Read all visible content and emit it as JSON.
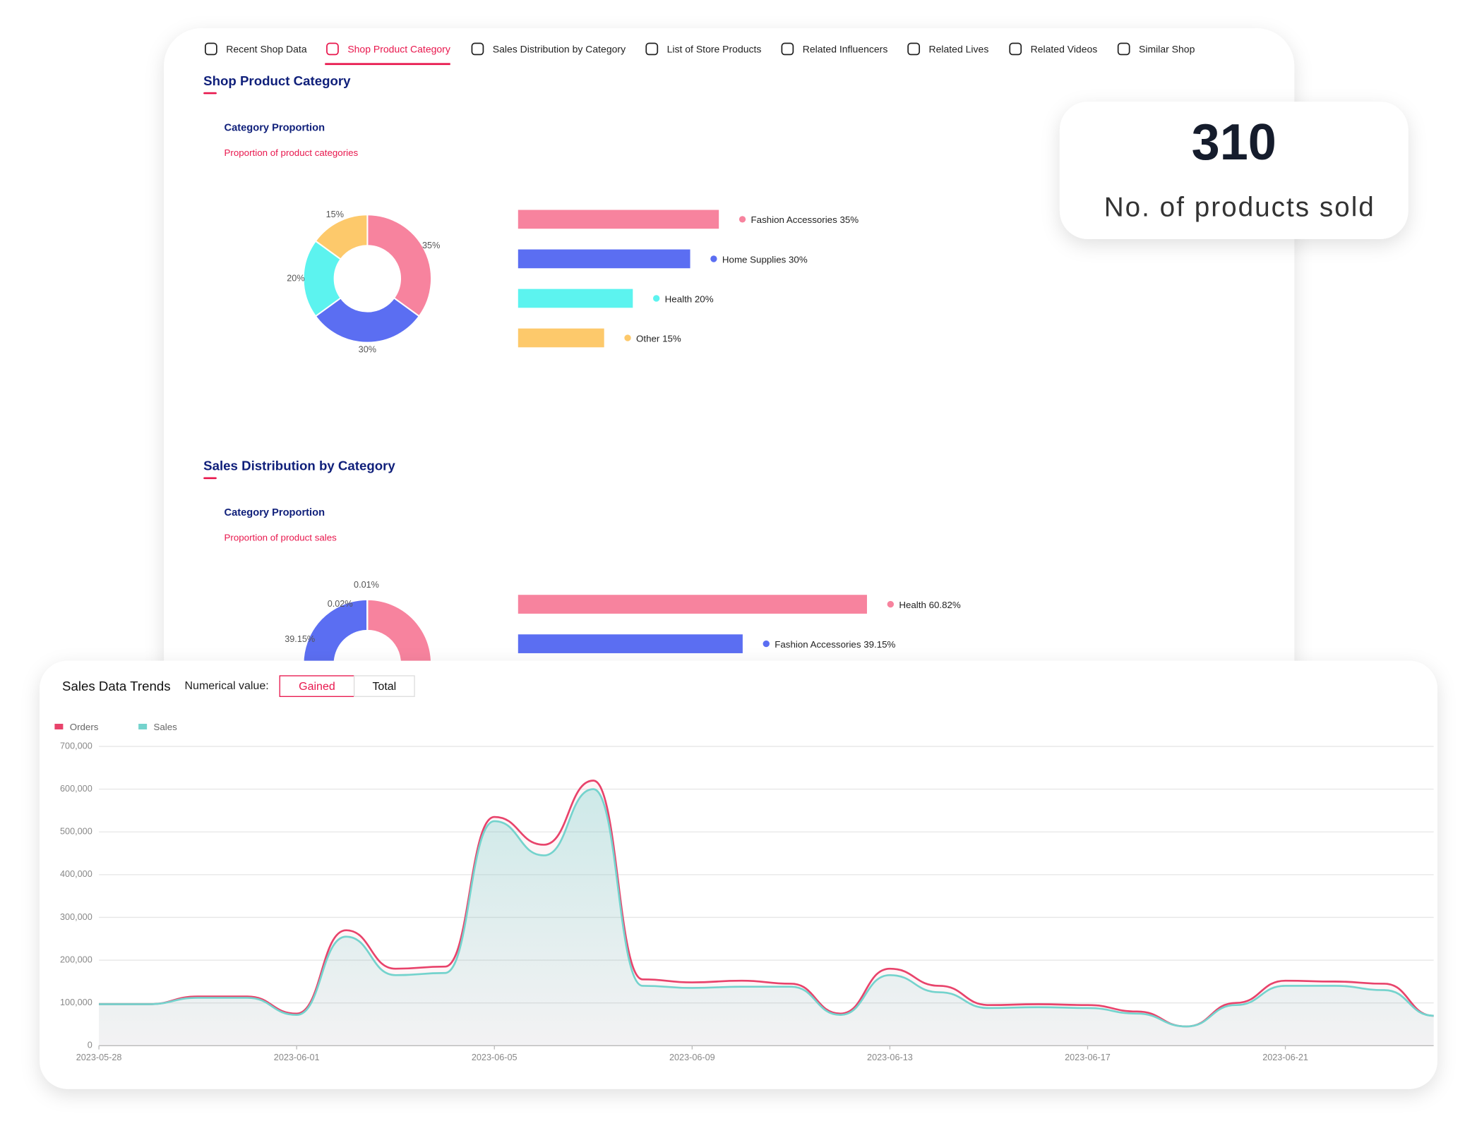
{
  "tabs": [
    "Recent Shop Data",
    "Shop Product Category",
    "Sales Distribution by Category",
    "List of Store Products",
    "Related Influencers",
    "Related Lives",
    "Related Videos",
    "Similar Shop"
  ],
  "active_tab": 1,
  "sections": [
    {
      "title": "Shop Product Category",
      "chart_data": {
        "type": "donut-bar",
        "title": "Category Proportion",
        "subtitle": "Proportion of product categories",
        "categories": [
          "Fashion Accessories",
          "Home Supplies",
          "Health",
          "Other"
        ],
        "values": [
          35,
          30,
          20,
          15
        ],
        "value_labels": [
          "35%",
          "30%",
          "20%",
          "15%"
        ],
        "colors": [
          "#f7839e",
          "#5b6ef2",
          "#5cf3ef",
          "#fdc96b"
        ]
      }
    },
    {
      "title": "Sales Distribution by Category",
      "chart_data": {
        "type": "donut-bar",
        "title": "Category Proportion",
        "subtitle": "Proportion of product sales",
        "categories": [
          "Health",
          "Fashion Accessories",
          null,
          null
        ],
        "values": [
          60.82,
          39.15,
          0.02,
          0.01
        ],
        "value_labels": [
          "60.82%",
          "39.15%",
          "0.02%",
          "0.01%"
        ],
        "colors": [
          "#f7839e",
          "#5b6ef2",
          "#5cf3ef",
          "#fdc96b"
        ]
      }
    }
  ],
  "stat": {
    "value": "310",
    "label": "No. of products sold"
  },
  "trend": {
    "title": "Sales Data Trends",
    "control_label": "Numerical value:",
    "buttons": [
      "Gained",
      "Total"
    ],
    "active_button": 0,
    "chart_data": {
      "type": "area",
      "x": [
        "2023-05-28",
        "2023-05-29",
        "2023-05-30",
        "2023-05-31",
        "2023-06-01",
        "2023-06-02",
        "2023-06-03",
        "2023-06-04",
        "2023-06-05",
        "2023-06-06",
        "2023-06-07",
        "2023-06-08",
        "2023-06-09",
        "2023-06-10",
        "2023-06-11",
        "2023-06-12",
        "2023-06-13",
        "2023-06-14",
        "2023-06-15",
        "2023-06-16",
        "2023-06-17",
        "2023-06-18",
        "2023-06-19",
        "2023-06-20",
        "2023-06-21",
        "2023-06-22",
        "2023-06-23",
        "2023-06-24"
      ],
      "xtick_every": 4,
      "series": [
        {
          "name": "Orders",
          "color": "#e8436b",
          "values": [
            97000,
            97000,
            115000,
            115000,
            75000,
            270000,
            180000,
            185000,
            535000,
            470000,
            620000,
            155000,
            148000,
            152000,
            145000,
            75000,
            180000,
            140000,
            95000,
            97000,
            95000,
            80000,
            45000,
            100000,
            152000,
            150000,
            145000,
            70000
          ]
        },
        {
          "name": "Sales",
          "color": "#74d3cd",
          "values": [
            97000,
            97000,
            112000,
            112000,
            72000,
            255000,
            165000,
            170000,
            525000,
            445000,
            600000,
            140000,
            135000,
            138000,
            138000,
            72000,
            165000,
            125000,
            88000,
            90000,
            88000,
            75000,
            45000,
            95000,
            140000,
            140000,
            130000,
            70000
          ]
        }
      ],
      "ylim": [
        0,
        700000
      ],
      "yticks": [
        0,
        {
          "value": 100000,
          "label": "100,000"
        },
        {
          "value": 200000,
          "label": "200,000"
        },
        {
          "value": 300000,
          "label": "300,000"
        },
        {
          "value": 400000,
          "label": "400,000"
        },
        {
          "value": 500000,
          "label": "500,000"
        },
        {
          "value": 600000,
          "label": "600,000"
        },
        {
          "value": 700000,
          "label": "700,000"
        }
      ],
      "grid": true
    }
  }
}
